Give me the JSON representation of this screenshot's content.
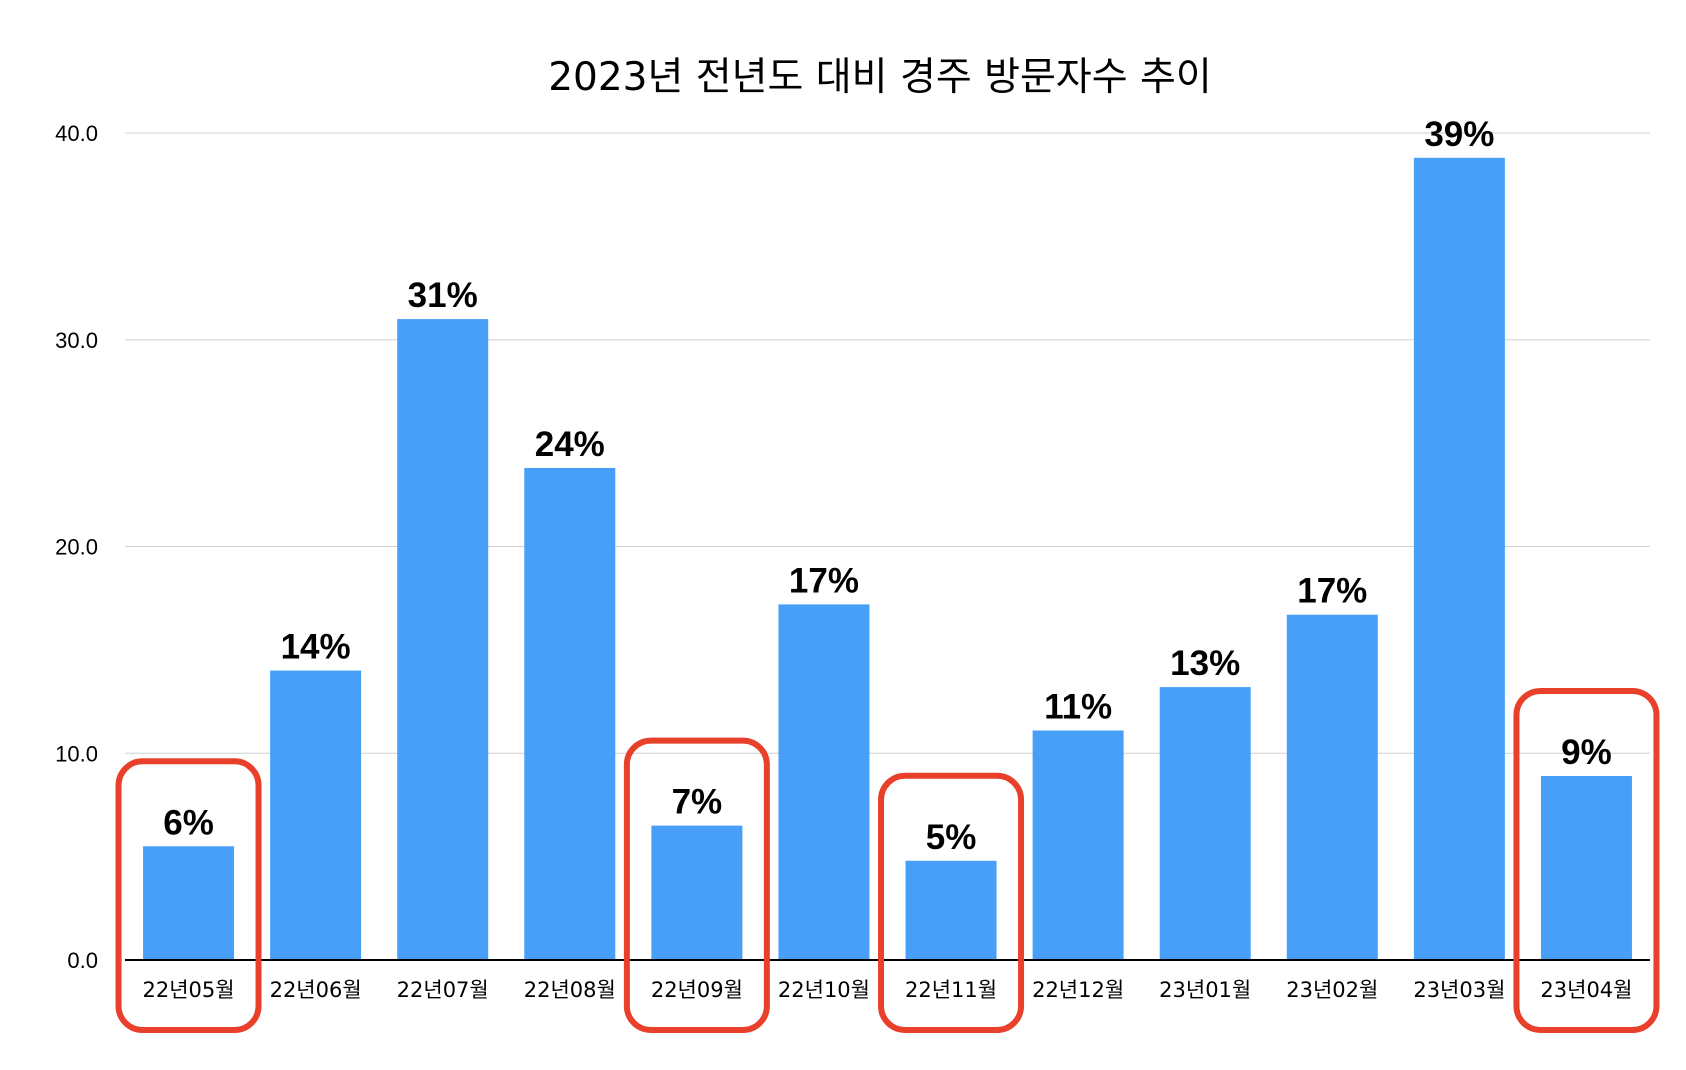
{
  "chart_data": {
    "type": "bar",
    "title": "2023년 전년도 대비 경주 방문자수 추이",
    "xlabel": "",
    "ylabel": "",
    "categories": [
      "22년05월",
      "22년06월",
      "22년07월",
      "22년08월",
      "22년09월",
      "22년10월",
      "22년11월",
      "22년12월",
      "23년01월",
      "23년02월",
      "23년03월",
      "23년04월"
    ],
    "values": [
      5.5,
      14.0,
      31.0,
      23.8,
      6.5,
      17.2,
      4.8,
      11.1,
      13.2,
      16.7,
      38.8,
      8.9
    ],
    "data_labels": [
      "6%",
      "14%",
      "31%",
      "24%",
      "7%",
      "17%",
      "5%",
      "11%",
      "13%",
      "17%",
      "39%",
      "9%"
    ],
    "ylim": [
      0,
      40
    ],
    "yticks": [
      0,
      10,
      20,
      30,
      40
    ],
    "ytick_labels": [
      "0.0",
      "10.0",
      "20.0",
      "30.0",
      "40.0"
    ],
    "grid": true,
    "legend": "none",
    "highlighted_categories": [
      "22년05월",
      "22년09월",
      "22년11월",
      "23년04월"
    ],
    "colors": {
      "bar": "#489ff8",
      "highlight": "#e8402b",
      "grid": "#d0d0d0",
      "axis": "#000000"
    }
  }
}
